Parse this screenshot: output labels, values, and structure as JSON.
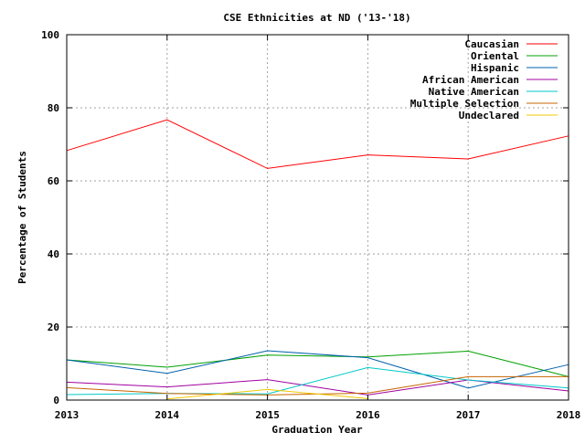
{
  "chart_data": {
    "type": "line",
    "title": "CSE Ethnicities at ND ('13-'18)",
    "xlabel": "Graduation Year",
    "ylabel": "Percentage of Students",
    "x": [
      2013,
      2014,
      2015,
      2016,
      2017,
      2018
    ],
    "x_ticks": [
      "2013",
      "2014",
      "2015",
      "2016",
      "2017",
      "2018"
    ],
    "y_ticks": [
      "0",
      "20",
      "40",
      "60",
      "80",
      "100"
    ],
    "xlim": [
      2013,
      2018
    ],
    "ylim": [
      0,
      100
    ],
    "grid": true,
    "legend_position": "top-right",
    "series": [
      {
        "name": "Caucasian",
        "color": "#ff0000",
        "values": [
          68.3,
          76.7,
          63.4,
          67.1,
          66.0,
          72.3
        ]
      },
      {
        "name": "Oriental",
        "color": "#00a000",
        "values": [
          11.0,
          9.0,
          12.3,
          11.8,
          13.4,
          6.4
        ]
      },
      {
        "name": "Hispanic",
        "color": "#0060ad",
        "values": [
          11.0,
          7.3,
          13.5,
          11.6,
          3.3,
          9.7
        ]
      },
      {
        "name": "African American",
        "color": "#a000a0",
        "values": [
          4.9,
          3.6,
          5.6,
          1.4,
          5.5,
          2.5
        ]
      },
      {
        "name": "Native American",
        "color": "#00c8c8",
        "values": [
          1.5,
          1.8,
          1.7,
          8.9,
          5.5,
          3.3
        ]
      },
      {
        "name": "Multiple Selection",
        "color": "#c86400",
        "values": [
          3.4,
          1.8,
          1.4,
          1.9,
          6.4,
          6.4
        ]
      },
      {
        "name": "Undeclared",
        "color": "#f0c800",
        "values": [
          null,
          0.3,
          2.9,
          0.4,
          null,
          null
        ]
      }
    ]
  }
}
